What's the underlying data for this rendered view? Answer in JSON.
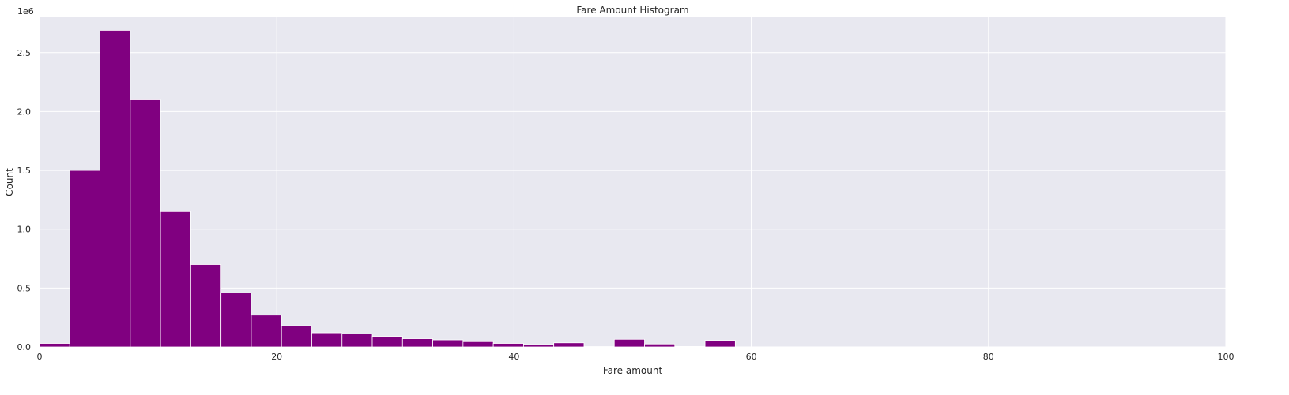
{
  "chart_data": {
    "type": "bar",
    "title": "Fare Amount Histogram",
    "xlabel": "Fare amount",
    "ylabel": "Count",
    "y_offset_label": "1e6",
    "xlim": [
      0,
      100
    ],
    "ylim": [
      0,
      2.8
    ],
    "y_scale_note": "values in units of 1e6 counts",
    "x_ticks": [
      0,
      20,
      40,
      60,
      80,
      100
    ],
    "x_tick_labels": [
      "0",
      "20",
      "40",
      "60",
      "80",
      "100"
    ],
    "y_ticks": [
      0,
      0.5,
      1.0,
      1.5,
      2.0,
      2.5
    ],
    "y_tick_labels": [
      "0.0",
      "0.5",
      "1.0",
      "1.5",
      "2.0",
      "2.5"
    ],
    "grid": true,
    "background": "#e8e8f0",
    "bar_color": "#800080",
    "bins": [
      {
        "x0": 0.0,
        "x1": 2.55,
        "value": 0.03
      },
      {
        "x0": 2.55,
        "x1": 5.1,
        "value": 1.5
      },
      {
        "x0": 5.1,
        "x1": 7.65,
        "value": 2.69
      },
      {
        "x0": 7.65,
        "x1": 10.2,
        "value": 2.1
      },
      {
        "x0": 10.2,
        "x1": 12.75,
        "value": 1.15
      },
      {
        "x0": 12.75,
        "x1": 15.3,
        "value": 0.7
      },
      {
        "x0": 15.3,
        "x1": 17.85,
        "value": 0.46
      },
      {
        "x0": 17.85,
        "x1": 20.4,
        "value": 0.27
      },
      {
        "x0": 20.4,
        "x1": 22.95,
        "value": 0.18
      },
      {
        "x0": 22.95,
        "x1": 25.5,
        "value": 0.12
      },
      {
        "x0": 25.5,
        "x1": 28.05,
        "value": 0.11
      },
      {
        "x0": 28.05,
        "x1": 30.6,
        "value": 0.09
      },
      {
        "x0": 30.6,
        "x1": 33.15,
        "value": 0.07
      },
      {
        "x0": 33.15,
        "x1": 35.7,
        "value": 0.06
      },
      {
        "x0": 35.7,
        "x1": 38.25,
        "value": 0.045
      },
      {
        "x0": 38.25,
        "x1": 40.8,
        "value": 0.03
      },
      {
        "x0": 40.8,
        "x1": 43.35,
        "value": 0.02
      },
      {
        "x0": 43.35,
        "x1": 45.9,
        "value": 0.035
      },
      {
        "x0": 45.9,
        "x1": 48.45,
        "value": 0.003
      },
      {
        "x0": 48.45,
        "x1": 51.0,
        "value": 0.065
      },
      {
        "x0": 51.0,
        "x1": 53.55,
        "value": 0.025
      },
      {
        "x0": 53.55,
        "x1": 56.1,
        "value": 0.004
      },
      {
        "x0": 56.1,
        "x1": 58.65,
        "value": 0.055
      }
    ]
  }
}
